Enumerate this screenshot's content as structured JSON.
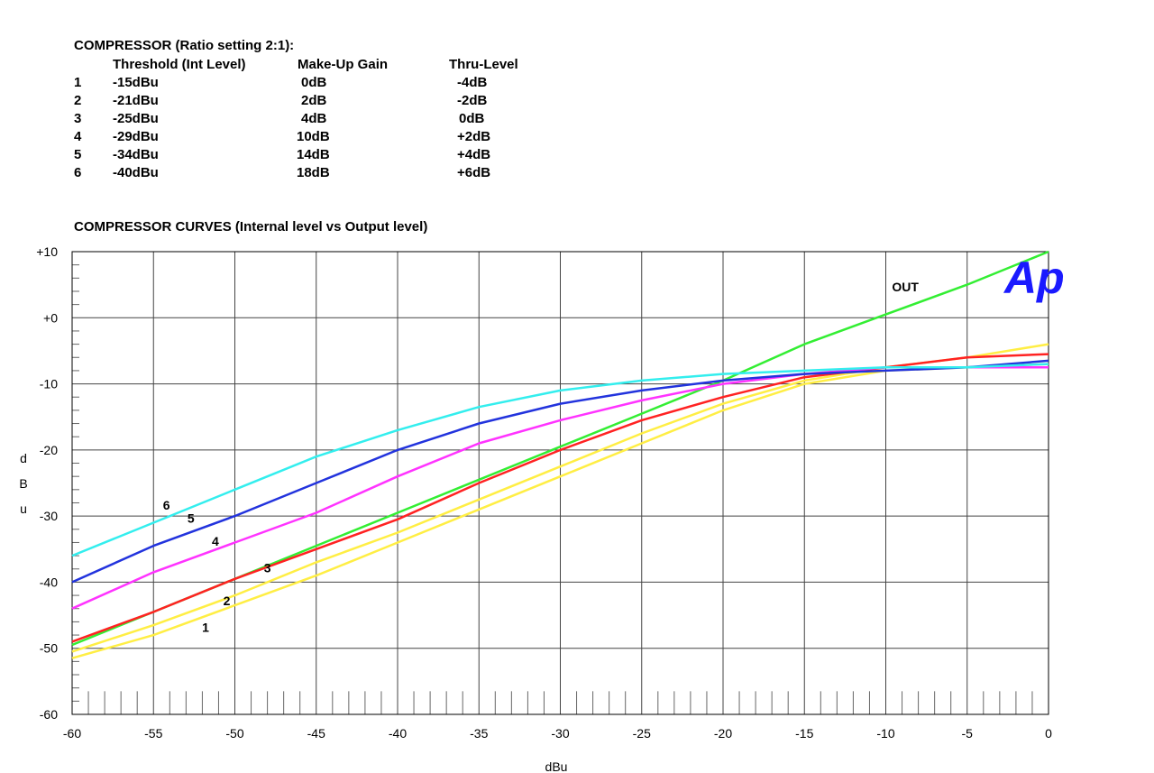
{
  "settings": {
    "title": "COMPRESSOR (Ratio setting 2:1):",
    "headers": [
      "Threshold (Int Level)",
      "Make-Up Gain",
      "Thru-Level"
    ],
    "rows": [
      [
        "1",
        "-15dBu",
        "0dB",
        "-4dB"
      ],
      [
        "2",
        "-21dBu",
        "2dB",
        "-2dB"
      ],
      [
        "3",
        "-25dBu",
        "4dB",
        "0dB"
      ],
      [
        "4",
        "-29dBu",
        "10dB",
        "+2dB"
      ],
      [
        "5",
        "-34dBu",
        "14dB",
        "+4dB"
      ],
      [
        "6",
        "-40dBu",
        "18dB",
        "+6dB"
      ]
    ]
  },
  "chart_title": "COMPRESSOR CURVES (Internal level vs Output level)",
  "logo_text": "Ap",
  "chart_data": {
    "type": "line",
    "title": "COMPRESSOR CURVES (Internal level vs Output level)",
    "xlabel": "dBu",
    "ylabel": "d B u",
    "xlim": [
      -60,
      0
    ],
    "ylim": [
      -60,
      10
    ],
    "x_ticks": [
      "-60",
      "-55",
      "-50",
      "-45",
      "-40",
      "-35",
      "-30",
      "-25",
      "-20",
      "-15",
      "-10",
      "-5",
      "0"
    ],
    "y_ticks": [
      "+10",
      "+0",
      "-10",
      "-20",
      "-30",
      "-40",
      "-50",
      "-60"
    ],
    "grid": true,
    "series": [
      {
        "name": "OUT",
        "color": "#33ee33",
        "x": [
          -60,
          -55,
          -50,
          -45,
          -40,
          -35,
          -30,
          -25,
          -20,
          -15,
          -10,
          -5,
          0
        ],
        "y": [
          -49.5,
          -44.5,
          -39.5,
          -34.5,
          -29.5,
          -24.5,
          -19.5,
          -14.5,
          -9.5,
          -4,
          0.5,
          5,
          10
        ]
      },
      {
        "name": "1",
        "color": "#ffee44",
        "x": [
          -60,
          -55,
          -50,
          -45,
          -40,
          -35,
          -30,
          -25,
          -20,
          -15,
          -10,
          -5,
          0
        ],
        "y": [
          -51.5,
          -48,
          -43.5,
          -39,
          -34,
          -29,
          -24,
          -19,
          -14,
          -10,
          -8,
          -7.5,
          -7
        ]
      },
      {
        "name": "2",
        "color": "#ffee44",
        "x": [
          -60,
          -55,
          -50,
          -45,
          -40,
          -35,
          -30,
          -25,
          -20,
          -15,
          -10,
          -5,
          0
        ],
        "y": [
          -50.5,
          -46.5,
          -42,
          -37,
          -32.5,
          -27.5,
          -22.5,
          -17.5,
          -13,
          -9.5,
          -7.5,
          -6,
          -4
        ]
      },
      {
        "name": "3",
        "color": "#ff2222",
        "x": [
          -60,
          -55,
          -50,
          -45,
          -40,
          -35,
          -30,
          -25,
          -20,
          -15,
          -10,
          -5,
          0
        ],
        "y": [
          -49,
          -44.5,
          -39.5,
          -35,
          -30.5,
          -25,
          -20,
          -15.5,
          -12,
          -9,
          -7.5,
          -6,
          -5.5
        ]
      },
      {
        "name": "4",
        "color": "#ff33ff",
        "x": [
          -60,
          -55,
          -50,
          -45,
          -40,
          -35,
          -30,
          -25,
          -20,
          -15,
          -10,
          -5,
          0
        ],
        "y": [
          -44,
          -38.5,
          -34,
          -29.5,
          -24,
          -19,
          -15.5,
          -12.5,
          -10,
          -8.5,
          -7.5,
          -7.5,
          -7.5
        ]
      },
      {
        "name": "5",
        "color": "#2233dd",
        "x": [
          -60,
          -55,
          -50,
          -45,
          -40,
          -35,
          -30,
          -25,
          -20,
          -15,
          -10,
          -5,
          0
        ],
        "y": [
          -40,
          -34.5,
          -30,
          -25,
          -20,
          -16,
          -13,
          -11,
          -9.5,
          -8.5,
          -8,
          -7.5,
          -6.5
        ]
      },
      {
        "name": "6",
        "color": "#33eeee",
        "x": [
          -60,
          -55,
          -50,
          -45,
          -40,
          -35,
          -30,
          -25,
          -20,
          -15,
          -10,
          -5,
          0
        ],
        "y": [
          -36,
          -31,
          -26,
          -21,
          -17,
          -13.5,
          -11,
          -9.5,
          -8.5,
          -8,
          -7.5,
          -7.5,
          -7
        ]
      }
    ],
    "annotations": [
      {
        "text": "OUT",
        "x": -8.8,
        "y": 4
      },
      {
        "text": "1",
        "x": -51.8,
        "y": -47.5
      },
      {
        "text": "2",
        "x": -50.5,
        "y": -43.5
      },
      {
        "text": "3",
        "x": -48,
        "y": -38.5
      },
      {
        "text": "4",
        "x": -51.2,
        "y": -34.5
      },
      {
        "text": "5",
        "x": -52.7,
        "y": -31
      },
      {
        "text": "6",
        "x": -54.2,
        "y": -29
      }
    ]
  }
}
